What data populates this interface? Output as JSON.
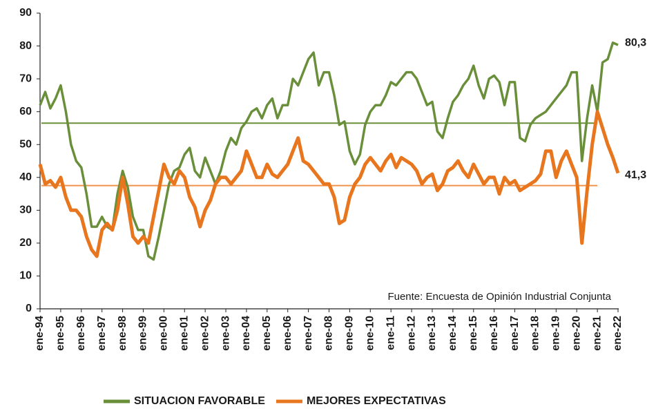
{
  "chart_data": {
    "type": "line",
    "annotation": "Fuente: Encuesta de Opinión Industrial Conjunta",
    "categories": [
      "ene-94",
      null,
      null,
      null,
      "ene-95",
      null,
      null,
      null,
      "ene-96",
      null,
      null,
      null,
      "ene-97",
      null,
      null,
      null,
      "ene-98",
      null,
      null,
      null,
      "ene-99",
      null,
      null,
      null,
      "ene-00",
      null,
      null,
      null,
      "ene-01",
      null,
      null,
      null,
      "ene-02",
      null,
      null,
      null,
      "ene-03",
      null,
      null,
      null,
      "ene-04",
      null,
      null,
      null,
      "ene-05",
      null,
      null,
      null,
      "ene-06",
      null,
      null,
      null,
      "ene-07",
      null,
      null,
      null,
      "ene-08",
      null,
      null,
      null,
      "ene-09",
      null,
      null,
      null,
      "ene-10",
      null,
      null,
      null,
      "ene-11",
      null,
      null,
      null,
      "ene-12",
      null,
      null,
      null,
      "ene-13",
      null,
      null,
      null,
      "ene-14",
      null,
      null,
      null,
      "ene-15",
      null,
      null,
      null,
      "ene-16",
      null,
      null,
      null,
      "ene-17",
      null,
      null,
      null,
      "ene-18",
      null,
      null,
      null,
      "ene-19",
      null,
      null,
      null,
      "ene-20",
      null,
      null,
      null,
      "ene-21",
      null,
      null,
      null,
      "ene-22"
    ],
    "series": [
      {
        "name": "SITUACION FAVORABLE",
        "color": "#6a8f3a",
        "last_label": "80,3",
        "values": [
          62,
          66,
          61,
          64,
          68,
          60,
          50,
          45,
          43,
          35,
          25,
          25,
          28,
          25,
          24,
          35,
          42,
          37,
          28,
          24,
          24,
          16,
          15,
          22,
          30,
          38,
          42,
          43,
          47,
          49,
          42,
          40,
          46,
          42,
          38,
          42,
          48,
          52,
          50,
          55,
          57,
          60,
          61,
          58,
          62,
          64,
          58,
          62,
          62,
          70,
          68,
          72,
          76,
          78,
          68,
          72,
          72,
          65,
          56,
          57,
          48,
          44,
          47,
          56,
          60,
          62,
          62,
          65,
          69,
          68,
          70,
          72,
          72,
          70,
          66,
          62,
          63,
          54,
          52,
          58,
          63,
          65,
          68,
          70,
          74,
          68,
          64,
          70,
          71,
          69,
          62,
          69,
          69,
          52,
          51,
          56,
          58,
          59,
          60,
          62,
          64,
          66,
          68,
          72,
          72,
          45,
          58,
          68,
          60,
          75,
          76,
          81,
          80.3
        ]
      },
      {
        "name": "MEJORES EXPECTATIVAS",
        "color": "#e8761f",
        "last_label": "41,3",
        "values": [
          44,
          38,
          39,
          37,
          40,
          34,
          30,
          30,
          28,
          22,
          18,
          16,
          24,
          26,
          24,
          30,
          40,
          32,
          22,
          20,
          22,
          20,
          28,
          36,
          44,
          40,
          38,
          42,
          40,
          34,
          31,
          25,
          30,
          33,
          38,
          40,
          40,
          38,
          40,
          42,
          48,
          44,
          40,
          40,
          44,
          41,
          40,
          42,
          44,
          48,
          52,
          45,
          44,
          42,
          40,
          38,
          38,
          34,
          26,
          27,
          34,
          38,
          40,
          44,
          46,
          44,
          42,
          45,
          47,
          43,
          46,
          45,
          44,
          42,
          38,
          40,
          41,
          36,
          38,
          42,
          43,
          45,
          42,
          40,
          44,
          41,
          38,
          40,
          40,
          35,
          40,
          38,
          39,
          36,
          37,
          38,
          39,
          41,
          48,
          48,
          40,
          45,
          48,
          44,
          40,
          20,
          36,
          50,
          60,
          55,
          50,
          46,
          41.3
        ]
      }
    ],
    "average_lines": [
      {
        "value": 56.5,
        "color": "#6a8f3a"
      },
      {
        "value": 37.5,
        "color": "#f0924a"
      }
    ],
    "ylim": [
      0,
      90
    ],
    "yticks": [
      0,
      10,
      20,
      30,
      40,
      50,
      60,
      70,
      80,
      90
    ],
    "legend": "bottom"
  }
}
